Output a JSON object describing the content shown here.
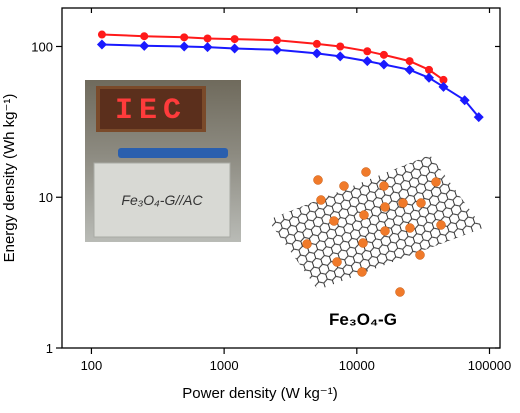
{
  "chart_data": {
    "type": "line",
    "xlabel": "Power density (W kg⁻¹)",
    "ylabel": "Energy density (Wh kg⁻¹)",
    "xscale": "log",
    "yscale": "log",
    "xlim": [
      60,
      120000
    ],
    "ylim": [
      1,
      180
    ],
    "xticks": [
      100,
      1000,
      10000,
      100000
    ],
    "yticks": [
      1,
      10,
      100
    ],
    "series": [
      {
        "color": "#ff1a1a",
        "marker": "circle",
        "x": [
          120,
          250,
          500,
          750,
          1200,
          2500,
          5000,
          7500,
          12000,
          16000,
          25000,
          35000,
          45000
        ],
        "values": [
          120,
          117,
          115,
          113,
          112,
          110,
          104,
          100,
          93,
          88,
          80,
          70,
          60
        ]
      },
      {
        "color": "#1a1aff",
        "marker": "diamond",
        "x": [
          120,
          250,
          500,
          750,
          1200,
          2500,
          5000,
          7500,
          12000,
          16000,
          25000,
          35000,
          45000,
          65000,
          83000
        ],
        "values": [
          103,
          101,
          100,
          99,
          97,
          95,
          90,
          86,
          80,
          76,
          70,
          62,
          54,
          44,
          34
        ]
      }
    ],
    "annotation": "Fe₃O₄-G",
    "inset_photo": {
      "display": "IEC",
      "label": "Fe₃O₄-G//AC"
    }
  }
}
